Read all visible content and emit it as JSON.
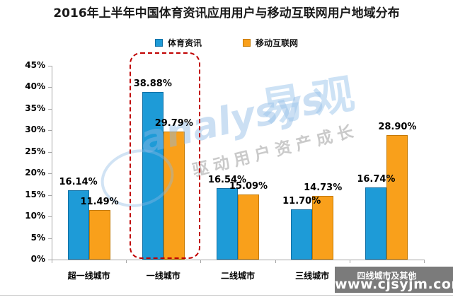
{
  "title": "2016年上半年中国体育资讯应用用户与移动互联网用户地域分布",
  "chart_data": {
    "type": "bar",
    "title": "2016年上半年中国体育资讯应用用户与移动互联网用户地域分布",
    "categories": [
      "超一线城市",
      "一线城市",
      "二线城市",
      "三线城市",
      "四线城市及其他"
    ],
    "series": [
      {
        "name": "体育资讯",
        "color": "#1E9BD7",
        "border": "#0F6FA4",
        "values": [
          16.14,
          38.88,
          16.54,
          11.7,
          16.74
        ]
      },
      {
        "name": "移动互联网",
        "color": "#F9A01B",
        "border": "#C47900",
        "values": [
          11.49,
          29.79,
          15.09,
          14.73,
          28.9
        ]
      }
    ],
    "data_labels": [
      [
        "16.14%",
        "38.88%",
        "16.54%",
        "11.70%",
        "16.74%"
      ],
      [
        "11.49%",
        "29.79%",
        "15.09%",
        "14.73%",
        "28.90%"
      ]
    ],
    "xlabel": "",
    "ylabel": "",
    "ylim": [
      0,
      45
    ],
    "ytick_step": 5,
    "ytick_labels": [
      "0%",
      "5%",
      "10%",
      "15%",
      "20%",
      "25%",
      "30%",
      "35%",
      "40%",
      "45%"
    ],
    "grid": "off",
    "legend_position": "top",
    "highlight_category": "一线城市"
  },
  "watermark": {
    "brand_script": "analysys",
    "brand_cn": "易观",
    "slogan": "驱动用户资产成长",
    "site_url": "www.cjsyjm.com"
  }
}
